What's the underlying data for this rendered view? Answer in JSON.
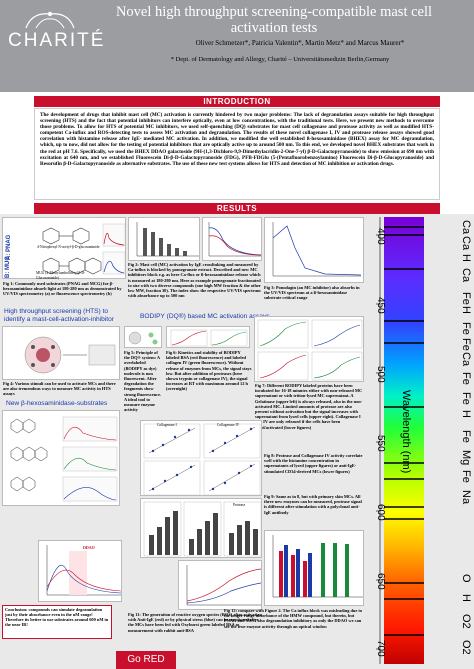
{
  "header": {
    "logo_text": "CHARITÉ",
    "title": "Novel high throughput screening-compatible mast cell activation tests",
    "authors": "Oliver Schmetzer*, Patricia Valentin*, Martin Metz* and Marcus Maurer*",
    "department": "* Dept. of Dermatology and Allergy, Charité – Universitätsmedizin Berlin,Germany"
  },
  "sections": {
    "introduction": "INTRODUCTION",
    "results": "RESULTS"
  },
  "introduction_text": "The development of drugs that inhibit mast cell (MC) activation is currently hindered by two major problems: The lack of degranulation assays suitable for high throughput screening (HTS) and the fact that potential inhibitors can interfere optically, even at low concentrations, with the traditional tests. Here, we present new methods to overcome those problems. To allow for HTS of potential MC inhibitors, we used self-quenching (DQ) substrates for mast cell collagenase and protease activity as well as modified HTS-competent Ca-influx and ROS-detecting tests to assess MC activation and degranulation. The results of these novel collagenase I, IV and protease release assays showed good correlation with histamine release after IgE- mediated MC activation. In addition, we modified the well established ß-hexosaminidase (BHEX) assay for MC degranulation, which, up to now, did not allow for the testing of potential inhibitors that are optically active up to around 500 nm. To this end, we developed novel BHEX substrates that work in the red at pH 7.6. Specifically, we used the BHEX DDAO galactoside (9H-(1,3-Dichloro-9,9-Dimethylacridin-2-One-7-yl) β-D-Galactopyranoside) to show emission at 690 nm with excitation at 640 nm, and we established Fluorescein Di-β-D-Galactopyranoside (FDG), PFB-FDGlu (5-(Pentafluorobenzoylamino) Fluorescein Di-β-D-Glucopyranoside) and Resorufin β-D-Galactopyranoside as alternative substrates. The use of these new test systems allows for HTS and detection of MC inhibition or activation drugs.",
  "labels": {
    "a_pnag": "A: PNAG",
    "b_mug": "B: MUG",
    "hts_label": "High throughput screening (HTS) to identify a mast-cell-activation-inhibitor",
    "bodipy_label": "BODIPY (DQ®) based MC activation assays",
    "new_substrates": "New β-hexosaminidase-substrates",
    "mug_caption": "MUG (4-Methylumbelliferyl β-D-Glucosaminide)",
    "pnag_caption": "4-Nitrophenyl N-acetyl-β-D-glucosaminide"
  },
  "captions": {
    "fig1": "Fig 1: Commonly used substrates (PNAG and MCG) for β-hexosaminidase absorb light at 180-280 nm as demonstrated by UV/VIS spectrometry (a) or fluorescence spectrometry (b)",
    "fig2": "Fig 2: Mast cell (MC) activation by IgE crosslinking and measured by Ca-influx is blocked by pomegranate extract. Described and new MC inhibitors block e.g. as here Ca-flux or ß-hexosaminidase release which is measured at 180-280 nm. Here as example pomegranate fractionated to size with two diverse compounds (one high MW fraction & the other low MW, fraction 30). The index show the respective UV/VIS spectrum with absorbance up to 500 nm",
    "fig3": "Fig 3: Pomolagin (an MC inhibitor) also absorbs in the UV/VIS spectrum at a ß-hexosaminidase substrate critical range",
    "fig4": "Fig 4: Various stimuli can be used to activate MCs and there are also tremendous ways to measure MC activity in HTS assays",
    "fig5": "Fig 5: Principle of the DQ® system: A overlabeled (BODIPY as dye) molecule is non fluorescent. After degradation the fragments show strong fluorescence. A ideal tool to measure enzyme activity",
    "fig6": "Fig 6: Kinetics and stability of BODIPY labeled BSA (red fluorescence) and labeled collagen IV (green fluorescence). Without release of enzymes from MCs, the signal stays low. But after addition of proteases (here shown trypsin or collagenase IV), the signal increases at RT with maximum around 12 h (overnight)",
    "fig7": "Fig 7: Different BODIPY labeled proteins have been incubated for 16-18 minutes either with non-released MC supernatant or with trition-lysed MC supernatant. A Gelatinase (upper left) is always released, also in the non-activated MC. Limited amounts of protease are also present without activation but the signal increases with supernatant from lysed cells (upper right). Collagenase I and IV are only released if the cells have been lysed/activated (lower figures)",
    "fig8": "Fig 8: Protease and Collagenase IV activity correlate well with the histamine concentration in supernatants of lysed (upper figures) or anti-IgE-stimulated CD34-derived MCs (lower figures)",
    "fig9": "Fig 9: Same as in 8, but with primary skin MCs. All three new enzymes can be measured, protease signal is different after stimulation with a polyclonal anti-IgE antibody",
    "fig10": "Fig 10: Possible fluorescent dyes with low interference with photoactive compounds (above the absorption spectra, structures on the left). DDAO can be detected in the near IR by a special photomultiplier and showed a good correlation with BHEX release",
    "fig11": "Fig 11: The generation of reactive oxygen species (ROS) after activation with Anti-IgE (red) or by physical stress (blue) can be monitored after the MCs have been fed with Oxyburst green labeled BSA as measurement with rabbit anti-BSA",
    "fig12": "Fig 12: compare with Figure 2. The Ca influx block was misleading due to the longer range absorbance of the HMW compound, but therein, but PNAG and MUG also degranulation inhibitory as only the DDAO we can see the true enzyme activity through an optical window",
    "conclusion": "Conclusion: compounds can simulate degranulation just by their absorbance even in the nM range! Therefore its better to use substrates around 600 nM in the near IR!"
  },
  "inner_text": {
    "collagenase_1": "Collagenase I",
    "collagenase_4": "Collagenase IV",
    "protease": "Protease",
    "gelatinase": "Gelatinase",
    "ddao_label": "DDAO",
    "optical_window": "optical window"
  },
  "spectrum": {
    "axis_title": "Wavelength (nm)",
    "ticks": [
      "400",
      "450",
      "500",
      "550",
      "600",
      "650",
      "700"
    ],
    "elements": [
      "Ca",
      "Ca",
      "H",
      "Ca",
      "Fe",
      "H",
      "Fe",
      "Fe",
      "Ca",
      "Fe",
      "Fe",
      "H",
      "Fe",
      "Mg",
      "Fe",
      "Na",
      "O",
      "H",
      "O2",
      "O2"
    ]
  },
  "footer": {
    "go_red": "Go RED"
  }
}
